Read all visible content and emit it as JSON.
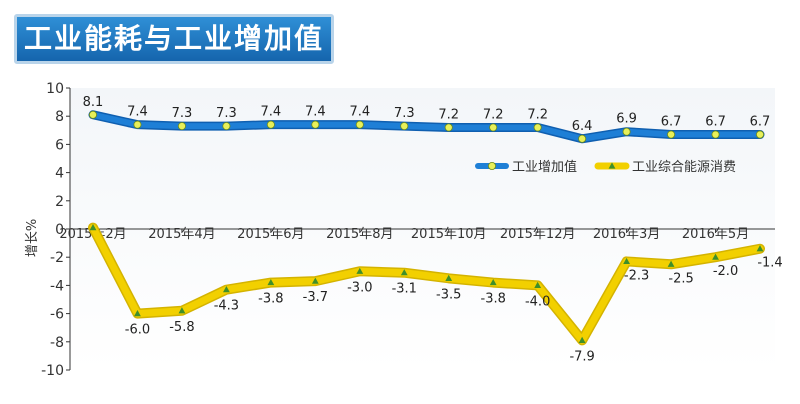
{
  "header": {
    "title": "工业能耗与工业增加值"
  },
  "chart_data": {
    "type": "line",
    "title": "工业能耗与工业增加值",
    "ylabel": "增长%",
    "xlabel": "",
    "ylim": [
      -10,
      10
    ],
    "yticks": [
      10,
      8,
      6,
      4,
      2,
      0,
      -2,
      -4,
      -6,
      -8,
      -10
    ],
    "x_tick_labels": [
      "2015年2月",
      "2015年4月",
      "2015年6月",
      "2015年8月",
      "2015年10月",
      "2015年12月",
      "2016年3月",
      "2016年5月"
    ],
    "x_tick_display": [
      "2015年2月",
      "2015年4月",
      "2015年6月",
      "2015年8月",
      "2015年10月",
      "2015年12月",
      "2016年3月",
      "2016年5月"
    ],
    "x_tick_index": [
      0,
      2,
      4,
      6,
      8,
      10,
      12,
      14
    ],
    "grid": false,
    "legend_position": "right",
    "series": [
      {
        "name": "工业增加值",
        "color": "#1e7fd6",
        "values": [
          8.1,
          7.4,
          7.3,
          7.3,
          7.4,
          7.4,
          7.4,
          7.3,
          7.2,
          7.2,
          7.2,
          6.4,
          6.9,
          6.7,
          6.7,
          6.7
        ]
      },
      {
        "name": "工业综合能源消费",
        "color": "#f2d000",
        "values": [
          0.1,
          -6.0,
          -5.8,
          -4.3,
          -3.8,
          -3.7,
          -3.0,
          -3.1,
          -3.5,
          -3.8,
          -4.0,
          -7.9,
          -2.3,
          -2.5,
          -2.0,
          -1.4
        ]
      }
    ],
    "data_labels": {
      "s0": [
        "8.1",
        "7.4",
        "7.3",
        "7.3",
        "7.4",
        "7.4",
        "7.4",
        "7.3",
        "7.2",
        "7.2",
        "7.2",
        "6.4",
        "6.9",
        "6.7",
        "6.7",
        "6.7"
      ],
      "s1": [
        "",
        "-6.0",
        "-5.8",
        "-4.3",
        "-3.8",
        "-3.7",
        "-3.0",
        "-3.1",
        "-3.5",
        "-3.8",
        "-4.0",
        "-7.9",
        "-2.3",
        "-2.5",
        "-2.0",
        "-1.4"
      ]
    }
  }
}
